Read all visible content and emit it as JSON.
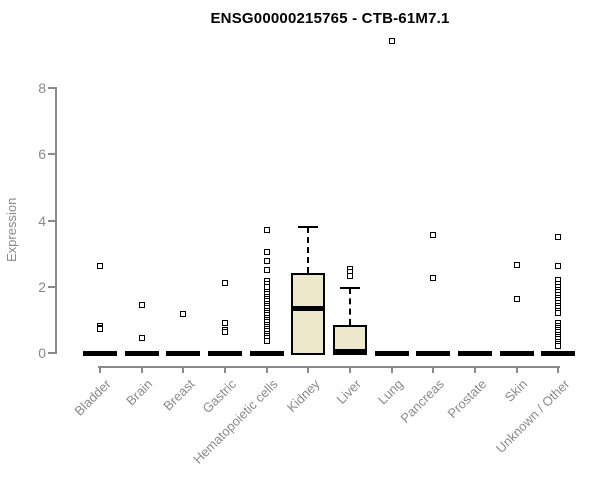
{
  "title": "ENSG00000215765 - CTB-61M7.1",
  "colors": {
    "box_fill": "#EDE7CB",
    "box_border": "#000000",
    "axis": "#8a8a8a",
    "title_text": "#000000",
    "outlier_border": "#000000",
    "background": "#ffffff"
  },
  "chart_data": {
    "type": "boxplot",
    "title": "ENSG00000215765 - CTB-61M7.1",
    "xlabel": "",
    "ylabel": "Expression",
    "ylim": [
      0,
      8
    ],
    "yticks": [
      0,
      2,
      4,
      6,
      8
    ],
    "grid": false,
    "legend": "none",
    "categories": [
      "Bladder",
      "Brain",
      "Breast",
      "Gastric",
      "Hematopoietic cells",
      "Kidney",
      "Liver",
      "Lung",
      "Pancreas",
      "Prostate",
      "Skin",
      "Unknown / Other"
    ],
    "boxes": [
      {
        "label": "Bladder",
        "q1": 0,
        "median": 0,
        "q3": 0,
        "whisker_low": 0,
        "whisker_high": 0,
        "outliers": [
          2.64,
          0.82,
          0.77,
          0.72
        ]
      },
      {
        "label": "Brain",
        "q1": 0,
        "median": 0,
        "q3": 0,
        "whisker_low": 0,
        "whisker_high": 0,
        "outliers": [
          1.44,
          0.45
        ]
      },
      {
        "label": "Breast",
        "q1": 0,
        "median": 0,
        "q3": 0,
        "whisker_low": 0,
        "whisker_high": 0,
        "outliers": [
          1.19
        ]
      },
      {
        "label": "Gastric",
        "q1": 0,
        "median": 0,
        "q3": 0,
        "whisker_low": 0,
        "whisker_high": 0,
        "outliers": [
          2.1,
          0.92,
          0.68,
          0.62
        ]
      },
      {
        "label": "Hematopoietic cells",
        "q1": 0,
        "median": 0,
        "q3": 0,
        "whisker_low": 0,
        "whisker_high": 0,
        "outliers": [
          3.72,
          3.06,
          2.78,
          2.51,
          2.18,
          2.08,
          2.0,
          1.84,
          1.77,
          1.7,
          1.63,
          1.56,
          1.49,
          1.42,
          1.35,
          1.28,
          1.21,
          1.14,
          1.07,
          1.0,
          0.93,
          0.86,
          0.79,
          0.72,
          0.65,
          0.58,
          0.51,
          0.44,
          0.37
        ]
      },
      {
        "label": "Kidney",
        "q1": 0,
        "median": 1.33,
        "q3": 2.41,
        "whisker_low": 0,
        "whisker_high": 3.82,
        "outliers": []
      },
      {
        "label": "Liver",
        "q1": 0,
        "median": 0.05,
        "q3": 0.85,
        "whisker_low": 0,
        "whisker_high": 1.95,
        "outliers": [
          2.55,
          2.45,
          2.33
        ]
      },
      {
        "label": "Lung",
        "q1": 0,
        "median": 0,
        "q3": 0,
        "whisker_low": 0,
        "whisker_high": 0,
        "outliers": [
          9.43
        ]
      },
      {
        "label": "Pancreas",
        "q1": 0,
        "median": 0,
        "q3": 0,
        "whisker_low": 0,
        "whisker_high": 0,
        "outliers": [
          3.56,
          2.26
        ]
      },
      {
        "label": "Prostate",
        "q1": 0,
        "median": 0,
        "q3": 0,
        "whisker_low": 0,
        "whisker_high": 0,
        "outliers": []
      },
      {
        "label": "Skin",
        "q1": 0,
        "median": 0,
        "q3": 0,
        "whisker_low": 0,
        "whisker_high": 0,
        "outliers": [
          2.65,
          1.63
        ]
      },
      {
        "label": "Unknown / Other",
        "q1": 0,
        "median": 0,
        "q3": 0,
        "whisker_low": 0,
        "whisker_high": 0,
        "outliers": [
          3.49,
          2.63,
          2.2,
          2.07,
          1.99,
          1.91,
          1.83,
          1.75,
          1.67,
          1.59,
          1.51,
          1.43,
          1.35,
          1.27,
          1.2,
          0.9,
          0.83,
          0.76,
          0.69,
          0.62,
          0.55,
          0.48,
          0.41,
          0.34,
          0.27,
          0.2
        ]
      }
    ]
  }
}
